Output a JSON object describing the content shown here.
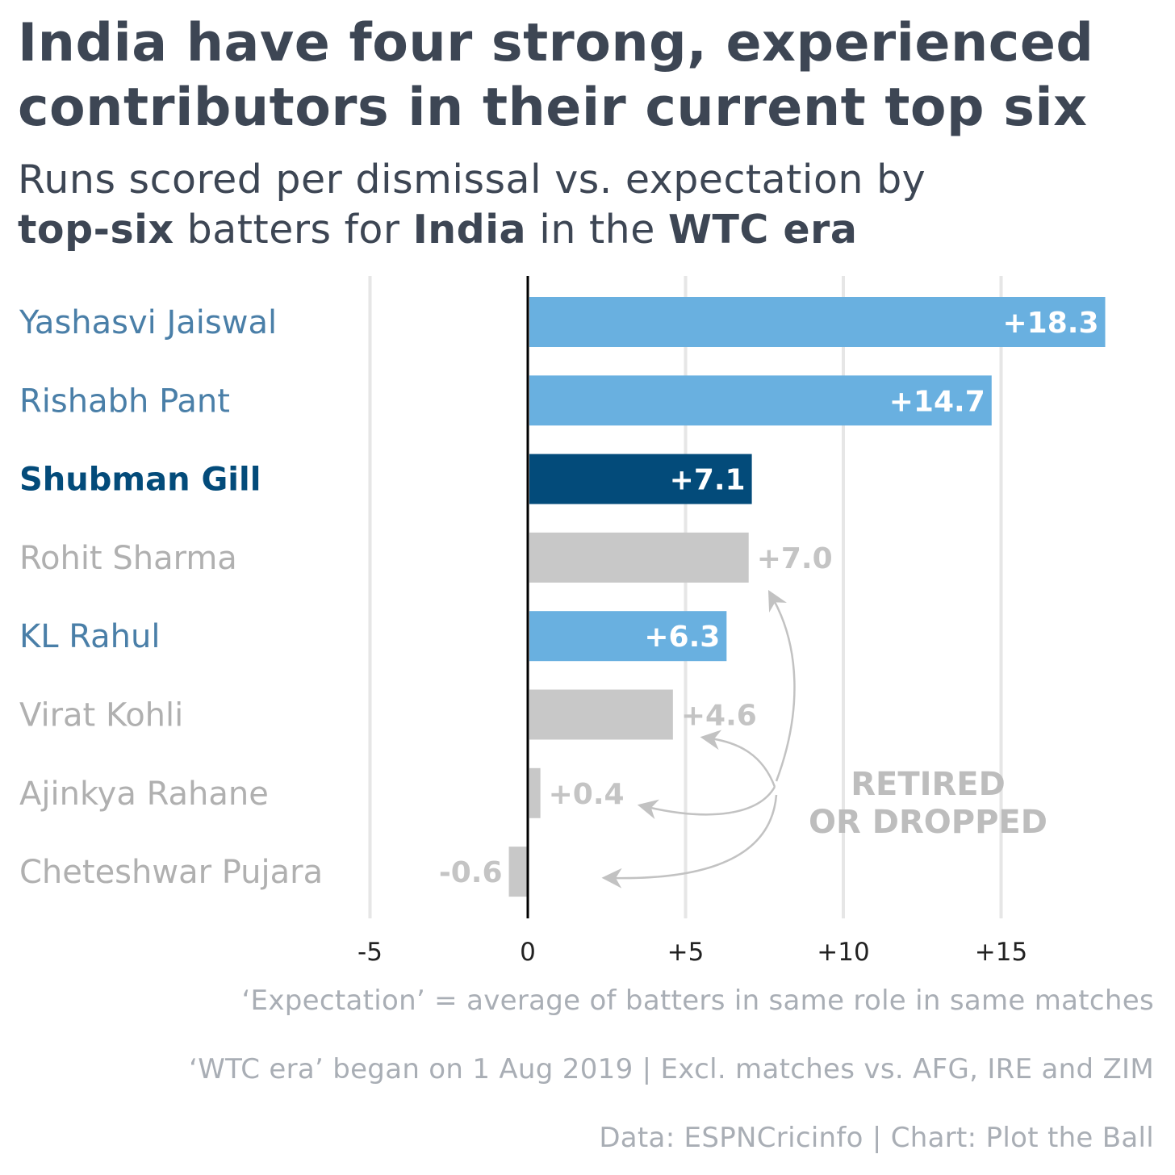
{
  "title_lines": [
    "India have four strong, experienced",
    "contributors in their current top six"
  ],
  "subtitle": {
    "line1": "Runs scored per dismissal vs. expectation by",
    "line2_parts": [
      "top-six",
      " batters for ",
      "India",
      " in the ",
      "WTC era"
    ]
  },
  "chart_data": {
    "type": "bar",
    "orientation": "horizontal",
    "categories": [
      "Yashasvi Jaiswal",
      "Rishabh Pant",
      "Shubman Gill",
      "Rohit Sharma",
      "KL Rahul",
      "Virat Kohli",
      "Ajinkya Rahane",
      "Cheteshwar Pujara"
    ],
    "values": [
      18.3,
      14.7,
      7.1,
      7.0,
      6.3,
      4.6,
      0.4,
      -0.6
    ],
    "labels": [
      "+18.3",
      "+14.7",
      "+7.1",
      "+7.0",
      "+6.3",
      "+4.6",
      "+0.4",
      "-0.6"
    ],
    "status": [
      "current",
      "current",
      "captain",
      "retired",
      "current",
      "retired",
      "retired",
      "retired"
    ],
    "xlim": [
      -5,
      19
    ],
    "xticks": [
      -5,
      0,
      5,
      10,
      15
    ],
    "xtick_labels": [
      "-5",
      "0",
      "+5",
      "+10",
      "+15"
    ],
    "grid": true,
    "annotation": [
      "RETIRED",
      "OR DROPPED"
    ]
  },
  "colors": {
    "current_bar": "#69b0e0",
    "current_name": "#4a7fa8",
    "captain_bar": "#034b7a",
    "captain_name": "#034b7a",
    "retired_bar": "#c8c8c8",
    "retired_name": "#b0b0b0",
    "grid": "#e6e6e6",
    "axis": "#000000"
  },
  "notes": [
    "‘Expectation’ = average of batters in same role in same matches",
    "‘WTC era’ began on 1 Aug 2019 | Excl. matches vs. AFG, IRE and ZIM",
    "Data: ESPNCricinfo | Chart: Plot the Ball"
  ]
}
